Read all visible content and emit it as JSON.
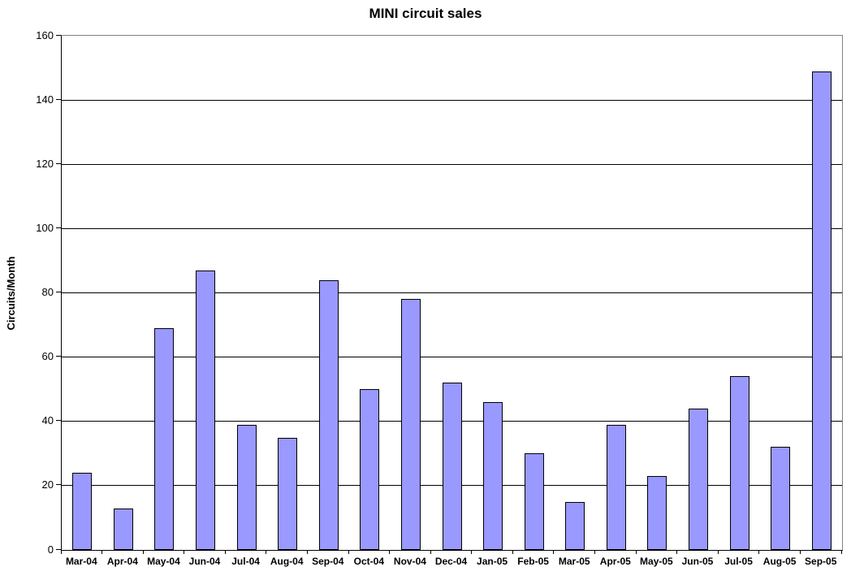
{
  "chart_data": {
    "type": "bar",
    "title": "MINI circuit sales",
    "xlabel": "",
    "ylabel": "Circuits/Month",
    "categories": [
      "Mar-04",
      "Apr-04",
      "May-04",
      "Jun-04",
      "Jul-04",
      "Aug-04",
      "Sep-04",
      "Oct-04",
      "Nov-04",
      "Dec-04",
      "Jan-05",
      "Feb-05",
      "Mar-05",
      "Apr-05",
      "May-05",
      "Jun-05",
      "Jul-05",
      "Aug-05",
      "Sep-05"
    ],
    "values": [
      24,
      13,
      69,
      87,
      39,
      35,
      84,
      50,
      78,
      52,
      46,
      30,
      15,
      39,
      23,
      44,
      54,
      32,
      149
    ],
    "ylim": [
      0,
      160
    ],
    "ytick_step": 20,
    "ytick_labels": [
      "0",
      "20",
      "40",
      "60",
      "80",
      "100",
      "120",
      "140",
      "160"
    ],
    "grid": true,
    "legend": false,
    "colors": {
      "bar_fill": "#9999FF",
      "bar_border": "#000000",
      "gridline": "#000000",
      "plot_border": "#808080",
      "axis": "#000000",
      "background": "#FFFFFF",
      "text": "#000000"
    }
  }
}
